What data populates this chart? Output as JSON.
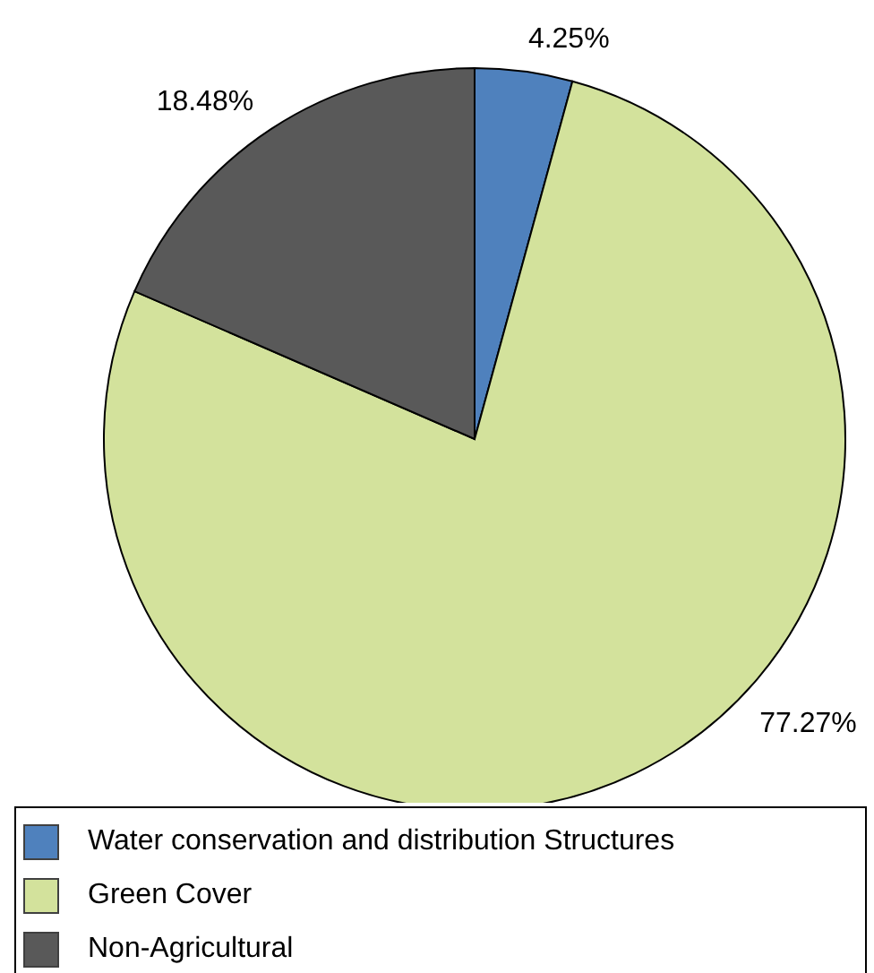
{
  "chart_data": {
    "type": "pie",
    "categories": [
      "Water conservation and distribution Structures",
      "Green Cover",
      "Non-Agricultural"
    ],
    "values": [
      4.25,
      77.27,
      18.48
    ],
    "colors": [
      "#4f81bd",
      "#d3e29c",
      "#595959"
    ],
    "value_labels": [
      "4.25%",
      "77.27%",
      "18.48%"
    ],
    "legend": "bottom"
  }
}
